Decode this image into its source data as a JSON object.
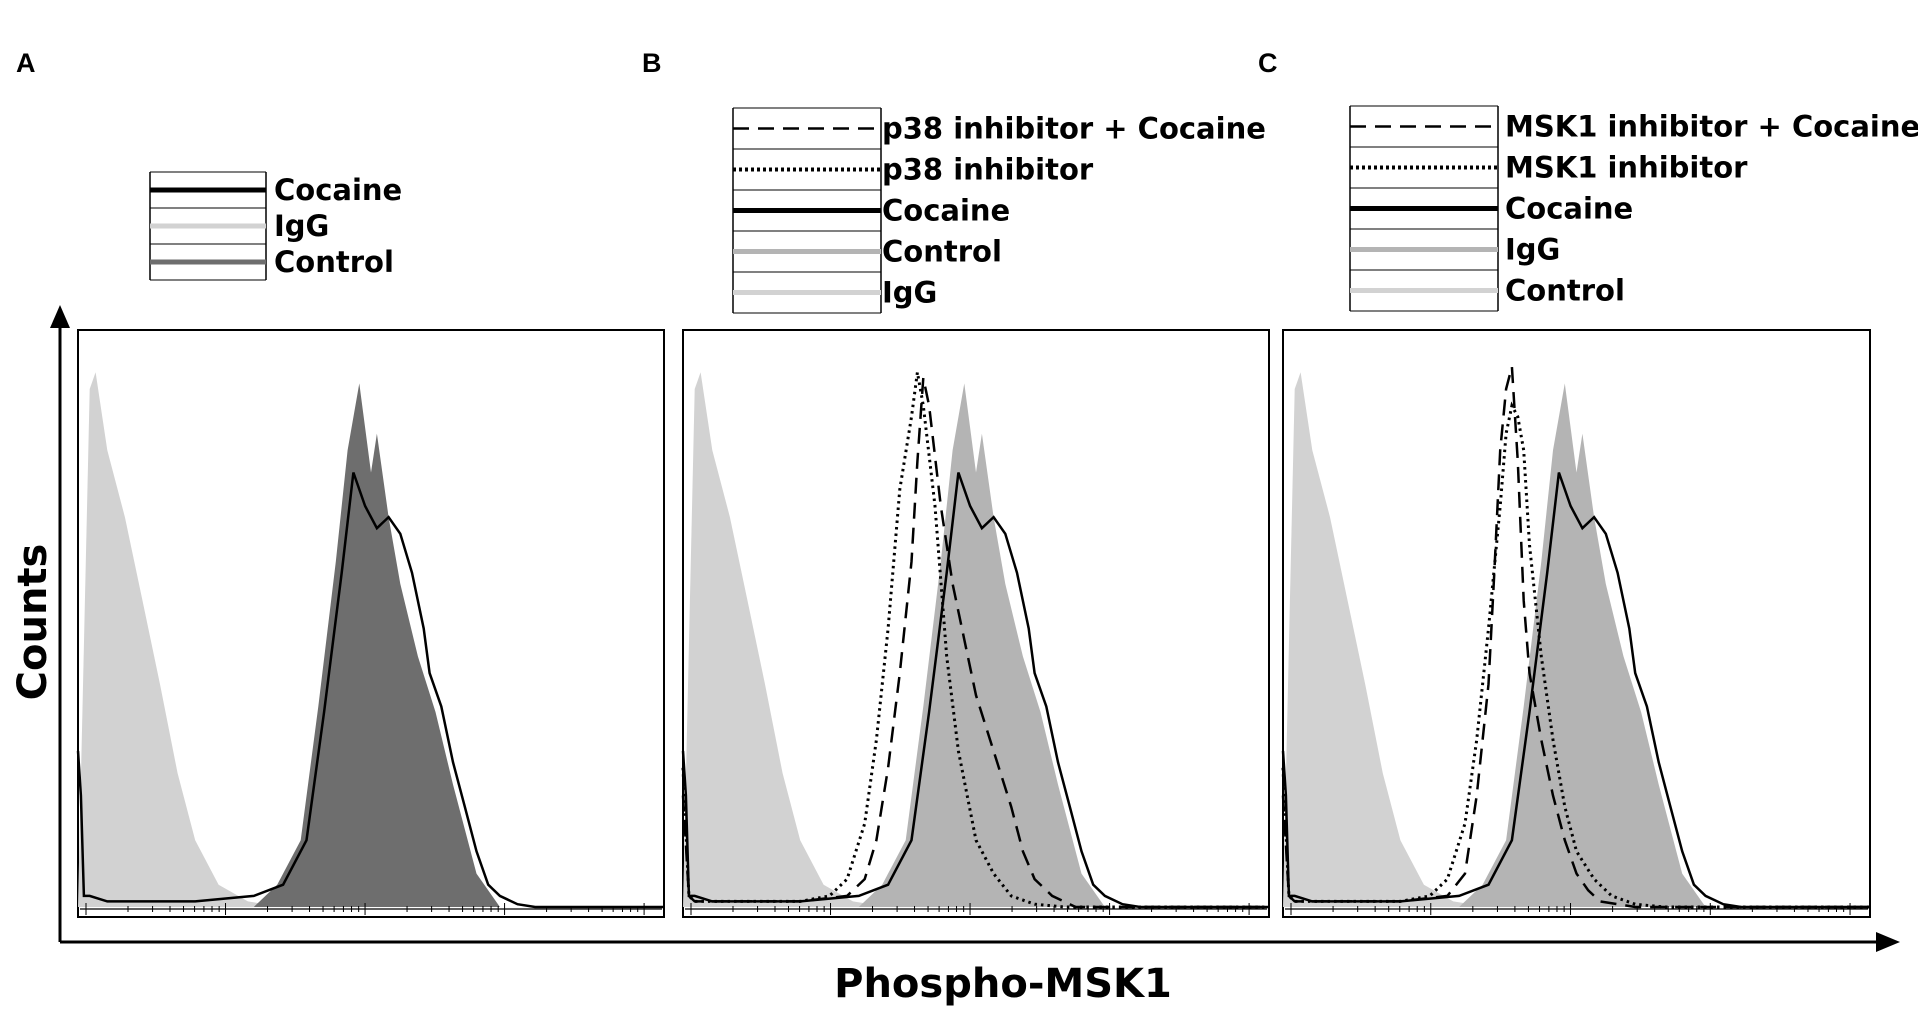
{
  "figure": {
    "x_axis_title": "Phospho-MSK1",
    "y_axis_title": "Counts"
  },
  "style": {
    "igg_fill": "#d2d2d2",
    "control_fill_A": "#6e6e6e",
    "control_fill_BC": "#b4b4b4",
    "line": "#000000"
  },
  "chart_data": [
    {
      "type": "area",
      "panel": "A",
      "xlabel": "Phospho-MSK1",
      "ylabel": "Counts",
      "x_scale": "log",
      "grid": false,
      "legend_position": "top",
      "legend": [
        {
          "label": "Cocaine",
          "style": "solid-black"
        },
        {
          "label": "IgG",
          "style": "light-gray"
        },
        {
          "label": "Control",
          "style": "dark-gray"
        }
      ],
      "series": [
        {
          "name": "IgG",
          "render": "filled",
          "color": "#d2d2d2",
          "x": [
            0.0,
            0.02,
            0.03,
            0.05,
            0.08,
            0.11,
            0.14,
            0.17,
            0.2,
            0.24,
            0.29,
            0.35,
            1.0
          ],
          "y": [
            0,
            0.93,
            0.96,
            0.82,
            0.7,
            0.55,
            0.4,
            0.24,
            0.12,
            0.04,
            0.01,
            0,
            0
          ]
        },
        {
          "name": "Control",
          "render": "filled",
          "color": "#6e6e6e",
          "x": [
            0.0,
            0.3,
            0.34,
            0.38,
            0.41,
            0.44,
            0.46,
            0.48,
            0.5,
            0.51,
            0.53,
            0.55,
            0.58,
            0.61,
            0.64,
            0.68,
            0.72,
            1.0
          ],
          "y": [
            0,
            0,
            0.04,
            0.12,
            0.36,
            0.62,
            0.82,
            0.94,
            0.78,
            0.85,
            0.7,
            0.58,
            0.45,
            0.35,
            0.22,
            0.06,
            0,
            0
          ]
        },
        {
          "name": "Cocaine",
          "render": "line",
          "color": "#000000",
          "x": [
            0.0,
            0.005,
            0.01,
            0.02,
            0.05,
            0.1,
            0.2,
            0.3,
            0.35,
            0.39,
            0.42,
            0.45,
            0.47,
            0.49,
            0.51,
            0.53,
            0.55,
            0.57,
            0.59,
            0.6,
            0.62,
            0.64,
            0.66,
            0.68,
            0.7,
            0.72,
            0.75,
            0.78,
            1.0
          ],
          "y": [
            0.28,
            0.2,
            0.02,
            0.02,
            0.01,
            0.01,
            0.01,
            0.02,
            0.04,
            0.12,
            0.35,
            0.6,
            0.78,
            0.72,
            0.68,
            0.7,
            0.67,
            0.6,
            0.5,
            0.42,
            0.36,
            0.26,
            0.18,
            0.1,
            0.04,
            0.02,
            0.005,
            0,
            0
          ]
        }
      ]
    },
    {
      "type": "area",
      "panel": "B",
      "xlabel": "Phospho-MSK1",
      "ylabel": "Counts",
      "x_scale": "log",
      "grid": false,
      "legend_position": "top",
      "legend": [
        {
          "label": "p38 inhibitor + Cocaine",
          "style": "dashed"
        },
        {
          "label": "p38 inhibitor",
          "style": "dotted"
        },
        {
          "label": "Cocaine",
          "style": "solid-black"
        },
        {
          "label": "Control",
          "style": "gray"
        },
        {
          "label": "IgG",
          "style": "light-gray"
        }
      ],
      "series": [
        {
          "name": "IgG",
          "render": "filled",
          "color": "#d2d2d2",
          "x": [
            0.0,
            0.02,
            0.03,
            0.05,
            0.08,
            0.11,
            0.14,
            0.17,
            0.2,
            0.24,
            0.29,
            0.35,
            1.0
          ],
          "y": [
            0,
            0.93,
            0.96,
            0.82,
            0.7,
            0.55,
            0.4,
            0.24,
            0.12,
            0.04,
            0.01,
            0,
            0
          ]
        },
        {
          "name": "Control",
          "render": "filled",
          "color": "#b4b4b4",
          "x": [
            0.0,
            0.3,
            0.34,
            0.38,
            0.41,
            0.44,
            0.46,
            0.48,
            0.5,
            0.51,
            0.53,
            0.55,
            0.58,
            0.61,
            0.64,
            0.68,
            0.72,
            1.0
          ],
          "y": [
            0,
            0,
            0.04,
            0.12,
            0.36,
            0.62,
            0.82,
            0.94,
            0.78,
            0.85,
            0.7,
            0.58,
            0.45,
            0.35,
            0.22,
            0.06,
            0,
            0
          ]
        },
        {
          "name": "Cocaine",
          "render": "line",
          "color": "#000000",
          "x": [
            0.0,
            0.005,
            0.01,
            0.02,
            0.05,
            0.1,
            0.2,
            0.3,
            0.35,
            0.39,
            0.42,
            0.45,
            0.47,
            0.49,
            0.51,
            0.53,
            0.55,
            0.57,
            0.59,
            0.6,
            0.62,
            0.64,
            0.66,
            0.68,
            0.7,
            0.72,
            0.75,
            0.78,
            1.0
          ],
          "y": [
            0.28,
            0.2,
            0.02,
            0.02,
            0.01,
            0.01,
            0.01,
            0.02,
            0.04,
            0.12,
            0.35,
            0.6,
            0.78,
            0.72,
            0.68,
            0.7,
            0.67,
            0.6,
            0.5,
            0.42,
            0.36,
            0.26,
            0.18,
            0.1,
            0.04,
            0.02,
            0.005,
            0,
            0
          ]
        },
        {
          "name": "p38 inhibitor",
          "render": "dotted",
          "color": "#000000",
          "x": [
            0.0,
            0.01,
            0.02,
            0.1,
            0.2,
            0.25,
            0.28,
            0.31,
            0.33,
            0.35,
            0.37,
            0.39,
            0.4,
            0.41,
            0.43,
            0.45,
            0.47,
            0.5,
            0.53,
            0.56,
            0.6,
            0.65,
            1.0
          ],
          "y": [
            0.25,
            0.02,
            0.01,
            0.01,
            0.01,
            0.02,
            0.05,
            0.15,
            0.3,
            0.5,
            0.75,
            0.88,
            0.96,
            0.9,
            0.72,
            0.45,
            0.28,
            0.12,
            0.06,
            0.02,
            0.005,
            0,
            0
          ]
        },
        {
          "name": "p38 inhibitor + Cocaine",
          "render": "dashed",
          "color": "#000000",
          "x": [
            0.0,
            0.01,
            0.02,
            0.1,
            0.2,
            0.28,
            0.31,
            0.33,
            0.35,
            0.37,
            0.39,
            0.4,
            0.41,
            0.42,
            0.44,
            0.46,
            0.48,
            0.5,
            0.53,
            0.56,
            0.58,
            0.6,
            0.63,
            0.67,
            1.0
          ],
          "y": [
            0.2,
            0.02,
            0.01,
            0.01,
            0.01,
            0.02,
            0.05,
            0.12,
            0.25,
            0.42,
            0.62,
            0.8,
            0.95,
            0.9,
            0.72,
            0.58,
            0.48,
            0.38,
            0.28,
            0.18,
            0.1,
            0.05,
            0.02,
            0,
            0
          ]
        }
      ]
    },
    {
      "type": "area",
      "panel": "C",
      "xlabel": "Phospho-MSK1",
      "ylabel": "Counts",
      "x_scale": "log",
      "grid": false,
      "legend_position": "top",
      "legend": [
        {
          "label": "MSK1 inhibitor + Cocaine",
          "style": "dashed"
        },
        {
          "label": "MSK1 inhibitor",
          "style": "dotted"
        },
        {
          "label": "Cocaine",
          "style": "solid-black"
        },
        {
          "label": "IgG",
          "style": "gray"
        },
        {
          "label": "Control",
          "style": "light-gray"
        }
      ],
      "series": [
        {
          "name": "Control",
          "render": "filled",
          "color": "#d2d2d2",
          "x": [
            0.0,
            0.02,
            0.03,
            0.05,
            0.08,
            0.11,
            0.14,
            0.17,
            0.2,
            0.24,
            0.29,
            0.35,
            1.0
          ],
          "y": [
            0,
            0.93,
            0.96,
            0.82,
            0.7,
            0.55,
            0.4,
            0.24,
            0.12,
            0.04,
            0.01,
            0,
            0
          ]
        },
        {
          "name": "IgG",
          "render": "filled",
          "color": "#b4b4b4",
          "x": [
            0.0,
            0.3,
            0.34,
            0.38,
            0.41,
            0.44,
            0.46,
            0.48,
            0.5,
            0.51,
            0.53,
            0.55,
            0.58,
            0.61,
            0.64,
            0.68,
            0.72,
            1.0
          ],
          "y": [
            0,
            0,
            0.04,
            0.12,
            0.36,
            0.62,
            0.82,
            0.94,
            0.78,
            0.85,
            0.7,
            0.58,
            0.45,
            0.35,
            0.22,
            0.06,
            0,
            0
          ]
        },
        {
          "name": "Cocaine",
          "render": "line",
          "color": "#000000",
          "x": [
            0.0,
            0.005,
            0.01,
            0.02,
            0.05,
            0.1,
            0.2,
            0.3,
            0.35,
            0.39,
            0.42,
            0.45,
            0.47,
            0.49,
            0.51,
            0.53,
            0.55,
            0.57,
            0.59,
            0.6,
            0.62,
            0.64,
            0.66,
            0.68,
            0.7,
            0.72,
            0.75,
            0.78,
            1.0
          ],
          "y": [
            0.28,
            0.2,
            0.02,
            0.02,
            0.01,
            0.01,
            0.01,
            0.02,
            0.04,
            0.12,
            0.35,
            0.6,
            0.78,
            0.72,
            0.68,
            0.7,
            0.67,
            0.6,
            0.5,
            0.42,
            0.36,
            0.26,
            0.18,
            0.1,
            0.04,
            0.02,
            0.005,
            0,
            0
          ]
        },
        {
          "name": "MSK1 inhibitor",
          "render": "dotted",
          "color": "#000000",
          "x": [
            0.0,
            0.01,
            0.02,
            0.1,
            0.2,
            0.25,
            0.28,
            0.31,
            0.33,
            0.35,
            0.37,
            0.38,
            0.39,
            0.4,
            0.41,
            0.42,
            0.44,
            0.46,
            0.48,
            0.5,
            0.53,
            0.56,
            0.6,
            0.65,
            1.0
          ],
          "y": [
            0.25,
            0.02,
            0.01,
            0.01,
            0.01,
            0.02,
            0.05,
            0.15,
            0.3,
            0.5,
            0.72,
            0.85,
            0.9,
            0.88,
            0.82,
            0.65,
            0.45,
            0.3,
            0.18,
            0.1,
            0.05,
            0.02,
            0.005,
            0,
            0
          ]
        },
        {
          "name": "MSK1 inhibitor + Cocaine",
          "render": "dashed",
          "color": "#000000",
          "x": [
            0.0,
            0.01,
            0.02,
            0.1,
            0.2,
            0.28,
            0.31,
            0.33,
            0.35,
            0.36,
            0.37,
            0.38,
            0.39,
            0.4,
            0.41,
            0.42,
            0.44,
            0.46,
            0.48,
            0.5,
            0.52,
            0.54,
            0.57,
            0.6,
            1.0
          ],
          "y": [
            0.2,
            0.02,
            0.01,
            0.01,
            0.01,
            0.02,
            0.06,
            0.2,
            0.4,
            0.6,
            0.82,
            0.93,
            0.97,
            0.8,
            0.55,
            0.42,
            0.3,
            0.2,
            0.12,
            0.06,
            0.03,
            0.01,
            0.005,
            0,
            0
          ]
        }
      ]
    }
  ]
}
